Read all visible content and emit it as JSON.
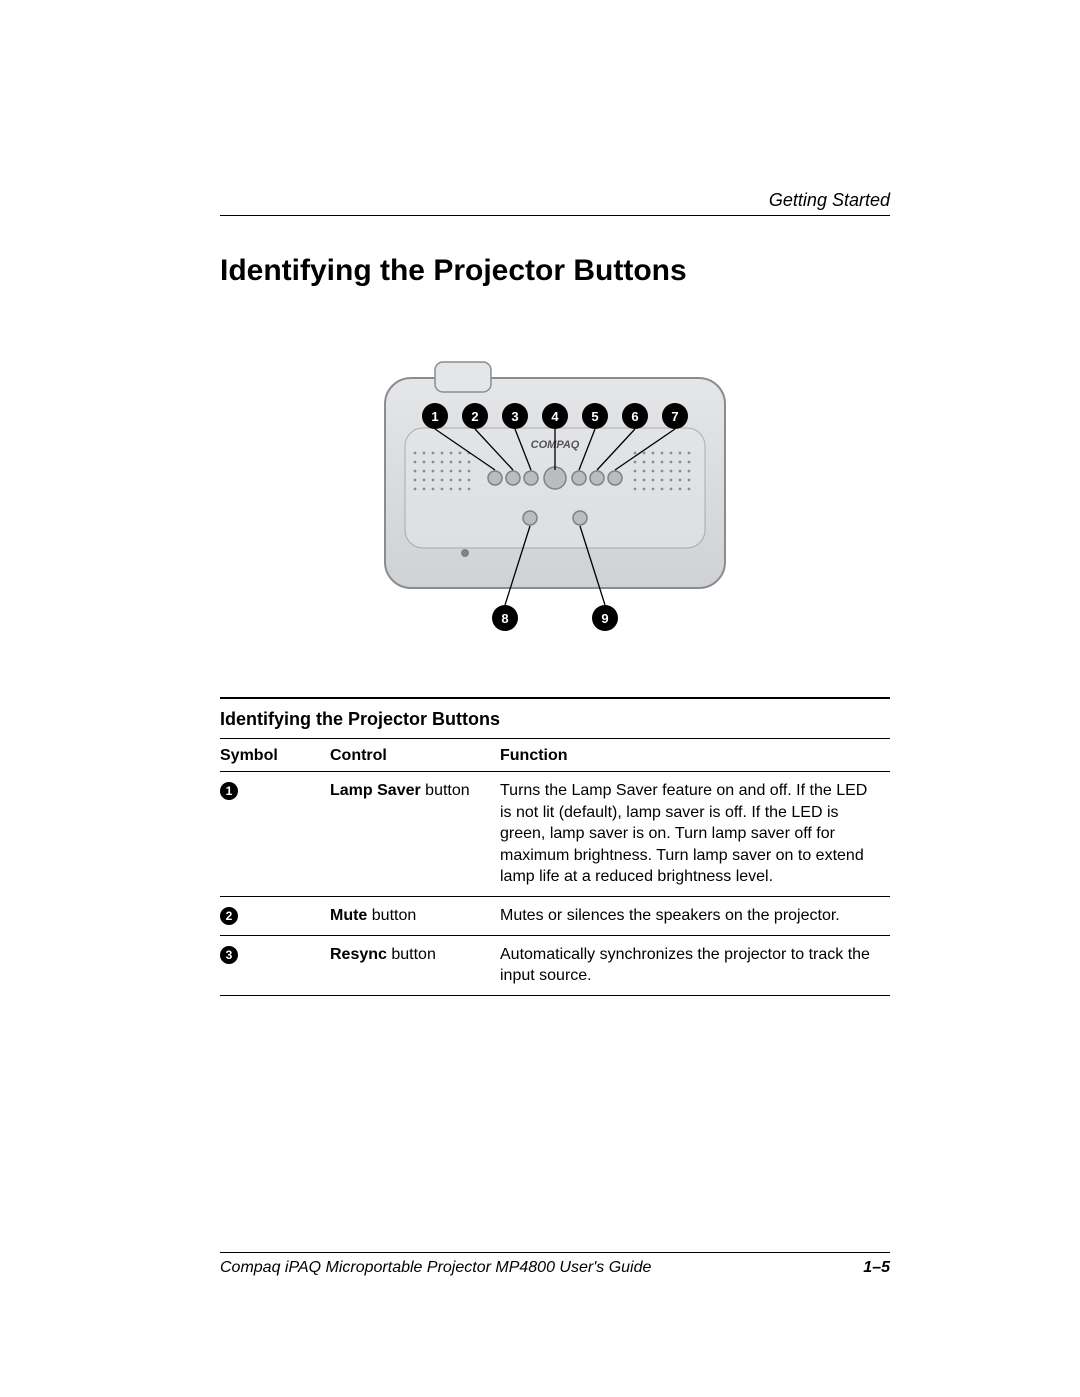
{
  "header": {
    "section": "Getting Started"
  },
  "title": "Identifying the Projector Buttons",
  "illustration": {
    "brand": "COMPAQ",
    "top_callouts": [
      "1",
      "2",
      "3",
      "4",
      "5",
      "6",
      "7"
    ],
    "bottom_callouts": [
      "8",
      "9"
    ],
    "body_fill_light": "#e5e6e8",
    "body_fill_dark": "#cfd1d4",
    "body_stroke": "#8a8c90",
    "callout_bg": "#000000",
    "callout_fg": "#ffffff",
    "button_fill": "#b9bcc0",
    "button_stroke": "#7e8185",
    "line_color": "#000000"
  },
  "table": {
    "title": "Identifying the Projector Buttons",
    "columns": [
      "Symbol",
      "Control",
      "Function"
    ],
    "rows": [
      {
        "symbol": "1",
        "control_bold": "Lamp Saver",
        "control_rest": " button",
        "function": "Turns the Lamp Saver feature on and off. If the LED is not lit (default), lamp saver is off. If the LED is green, lamp saver is on. Turn lamp saver off for maximum brightness. Turn lamp saver on to extend lamp life at a reduced brightness level."
      },
      {
        "symbol": "2",
        "control_bold": "Mute",
        "control_rest": " button",
        "function": "Mutes or silences the speakers on the projector."
      },
      {
        "symbol": "3",
        "control_bold": "Resync",
        "control_rest": " button",
        "function": "Automatically synchronizes the projector to track the input source."
      }
    ]
  },
  "footer": {
    "guide": "Compaq iPAQ Microportable Projector MP4800 User's Guide",
    "page": "1–5"
  }
}
